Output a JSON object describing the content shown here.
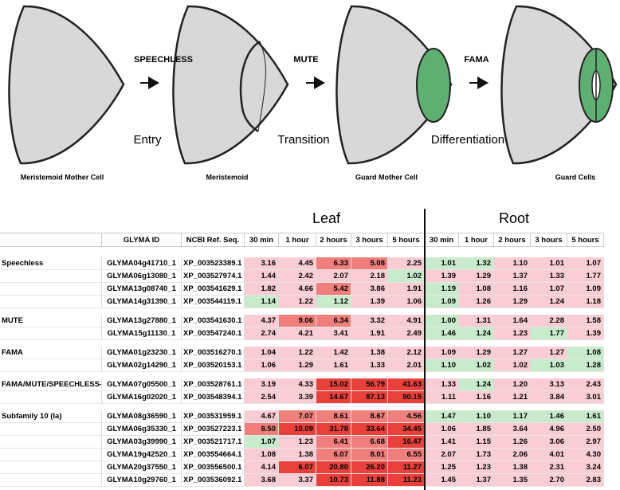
{
  "diagram": {
    "factors": [
      "SPEECHLESS",
      "MUTE",
      "FAMA"
    ],
    "stages": [
      "Entry",
      "Transition",
      "Differentiation"
    ],
    "cells": [
      "Meristemoid Mother Cell",
      "Meristemoid",
      "Guard Mother Cell",
      "Guard Cells"
    ]
  },
  "table": {
    "tissues": [
      "Leaf",
      "Root"
    ],
    "columns": [
      "GLYMA ID",
      "NCBI Ref. Seq.",
      "30 min",
      "1 hour",
      "2 hours",
      "3 hours",
      "5 hours",
      "30 min",
      "1 hour",
      "2 hours",
      "3 hours",
      "5 hours"
    ],
    "palette": {
      "p": "#f9cdd3",
      "r": "#f07f7c",
      "R": "#e8413c",
      "g": "#c8eccb"
    },
    "groups": [
      {
        "name": "Speechless",
        "rows": [
          {
            "id": "GLYMA04g41710_1",
            "ncbi": "XP_003523389.1",
            "values": [
              "3.16",
              "4.45",
              "6.33",
              "5.08",
              "2.25",
              "1.01",
              "1.32",
              "1.10",
              "1.01",
              "1.07"
            ],
            "colors": "pprrpggppp"
          },
          {
            "id": "GLYMA06g13080_1",
            "ncbi": "XP_003527974.1",
            "values": [
              "1.44",
              "2.42",
              "2.07",
              "2.18",
              "1.02",
              "1.39",
              "1.29",
              "1.37",
              "1.33",
              "1.77"
            ],
            "colors": "ppppgppppp"
          },
          {
            "id": "GLYMA13g08740_1",
            "ncbi": "XP_003541629.1",
            "values": [
              "1.82",
              "4.66",
              "5.42",
              "3.86",
              "1.91",
              "1.19",
              "1.08",
              "1.16",
              "1.07",
              "1.09"
            ],
            "colors": "pprppgpppp"
          },
          {
            "id": "GLYMA14g31390_1",
            "ncbi": "XP_003544119.1",
            "values": [
              "1.14",
              "1.22",
              "1.12",
              "1.39",
              "1.06",
              "1.09",
              "1.26",
              "1.29",
              "1.24",
              "1.18"
            ],
            "colors": "gpgppgpppp"
          }
        ]
      },
      {
        "name": "MUTE",
        "rows": [
          {
            "id": "GLYMA13g27880_1",
            "ncbi": "XP_003541630.1",
            "values": [
              "4.37",
              "9.06",
              "6.34",
              "3.32",
              "4.91",
              "1.00",
              "1.31",
              "1.64",
              "2.28",
              "1.58"
            ],
            "colors": "prrppgpppp"
          },
          {
            "id": "GLYMA15g11130_1",
            "ncbi": "XP_003547240.1",
            "values": [
              "2.74",
              "4.21",
              "3.41",
              "1.91",
              "2.49",
              "1.46",
              "1.24",
              "1.23",
              "1.77",
              "1.39"
            ],
            "colors": "pppppggpgp"
          }
        ]
      },
      {
        "name": "FAMA",
        "rows": [
          {
            "id": "GLYMA01g23230_1",
            "ncbi": "XP_003516270.1",
            "values": [
              "1.04",
              "1.22",
              "1.42",
              "1.38",
              "2.12",
              "1.09",
              "1.29",
              "1.27",
              "1.27",
              "1.08"
            ],
            "colors": "pppppppppg"
          },
          {
            "id": "GLYMA02g14290_1",
            "ncbi": "XP_003520153.1",
            "values": [
              "1.06",
              "1.29",
              "1.61",
              "1.33",
              "2.01",
              "1.10",
              "1.02",
              "1.02",
              "1.03",
              "1.28"
            ],
            "colors": "pppppggpgg"
          }
        ]
      },
      {
        "name": "FAMA/MUTE/SPEECHLESS-like",
        "rows": [
          {
            "id": "GLYMA07g05500_1",
            "ncbi": "XP_003528761.1",
            "values": [
              "3.19",
              "4.33",
              "15.02",
              "56.79",
              "41.63",
              "1.33",
              "1.24",
              "1.20",
              "3.13",
              "2.43"
            ],
            "colors": "ppRRRpgppp"
          },
          {
            "id": "GLYMA16g02020_1",
            "ncbi": "XP_003548394.1",
            "values": [
              "2.54",
              "3.39",
              "14.67",
              "87.13",
              "90.15",
              "1.11",
              "1.16",
              "1.21",
              "3.84",
              "3.01"
            ],
            "colors": "ppRRRppppp"
          }
        ]
      },
      {
        "name": "Subfamily 10 (Ia)",
        "rows": [
          {
            "id": "GLYMA08g36590_1",
            "ncbi": "XP_003531959.1",
            "values": [
              "4.67",
              "7.07",
              "8.61",
              "8.67",
              "4.56",
              "1.47",
              "1.10",
              "1.17",
              "1.46",
              "1.61"
            ],
            "colors": "prrrrggggg"
          },
          {
            "id": "GLYMA06g35330_1",
            "ncbi": "XP_003527223.1",
            "values": [
              "8.50",
              "10.09",
              "31.78",
              "33.64",
              "34.45",
              "1.06",
              "1.85",
              "3.64",
              "4.96",
              "2.50"
            ],
            "colors": "rRRRRppppp"
          },
          {
            "id": "GLYMA03g39990_1",
            "ncbi": "XP_003521717.1",
            "values": [
              "1.07",
              "1.23",
              "6.41",
              "6.68",
              "16.47",
              "1.41",
              "1.15",
              "1.26",
              "3.06",
              "2.97"
            ],
            "colors": "gprrRppppp"
          },
          {
            "id": "GLYMA19g42520_1",
            "ncbi": "XP_003554664.1",
            "values": [
              "1.08",
              "1.38",
              "6.07",
              "8.01",
              "6.55",
              "2.07",
              "1.73",
              "2.06",
              "4.01",
              "4.30"
            ],
            "colors": "pprrrppppp"
          },
          {
            "id": "GLYMA20g37550_1",
            "ncbi": "XP_003556500.1",
            "values": [
              "4.14",
              "6.07",
              "20.80",
              "26.20",
              "11.27",
              "1.25",
              "1.23",
              "1.38",
              "2.31",
              "3.24"
            ],
            "colors": "pRRRRppppp"
          },
          {
            "id": "GLYMA10g29760_1",
            "ncbi": "XP_003536092.1",
            "values": [
              "3.68",
              "3.37",
              "10.73",
              "11.88",
              "11.23",
              "1.45",
              "1.37",
              "1.35",
              "2.70",
              "2.83"
            ],
            "colors": "ppRRRppppp"
          }
        ]
      }
    ]
  }
}
